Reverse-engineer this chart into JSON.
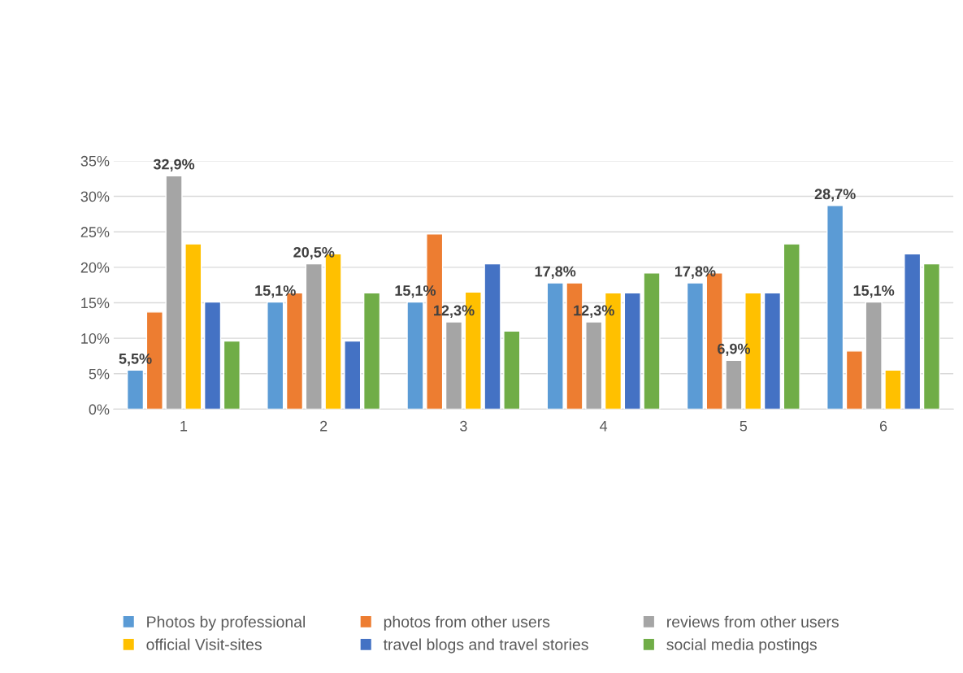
{
  "chart_data": {
    "type": "bar",
    "categories": [
      "1",
      "2",
      "3",
      "4",
      "5",
      "6"
    ],
    "series": [
      {
        "name": "Photos by professional",
        "color": "#5b9bd5",
        "values": [
          5.5,
          15.1,
          15.1,
          17.8,
          17.8,
          28.7
        ],
        "value_labels": [
          "5,5%",
          "15,1%",
          "15,1%",
          "17,8%",
          "17,8%",
          "28,7%"
        ]
      },
      {
        "name": "photos from other users",
        "color": "#ed7d31",
        "values": [
          13.7,
          16.4,
          24.7,
          17.8,
          19.2,
          8.2
        ]
      },
      {
        "name": "reviews from other users",
        "color": "#a5a5a5",
        "values": [
          32.9,
          20.5,
          12.3,
          12.3,
          6.9,
          15.1
        ],
        "value_labels": [
          "32,9%",
          "20,5%",
          "12,3%",
          "12,3%",
          "6,9%",
          "15,1%"
        ]
      },
      {
        "name": "official Visit-sites",
        "color": "#ffc000",
        "values": [
          23.3,
          21.9,
          16.5,
          16.4,
          16.4,
          5.5
        ]
      },
      {
        "name": "travel blogs and travel stories",
        "color": "#4472c4",
        "values": [
          15.1,
          9.6,
          20.5,
          16.4,
          16.4,
          21.9
        ]
      },
      {
        "name": "social media postings",
        "color": "#70ad47",
        "values": [
          9.6,
          16.4,
          11.0,
          19.2,
          23.3,
          20.5
        ]
      }
    ],
    "ylim": [
      0,
      35
    ],
    "yticks": [
      {
        "value": 0,
        "label": "0%"
      },
      {
        "value": 5,
        "label": "5%"
      },
      {
        "value": 10,
        "label": "10%"
      },
      {
        "value": 15,
        "label": "15%"
      },
      {
        "value": 20,
        "label": "20%"
      },
      {
        "value": 25,
        "label": "25%"
      },
      {
        "value": 30,
        "label": "30%"
      },
      {
        "value": 35,
        "label": "35%"
      }
    ],
    "grid": "y",
    "legend": "bottom"
  }
}
